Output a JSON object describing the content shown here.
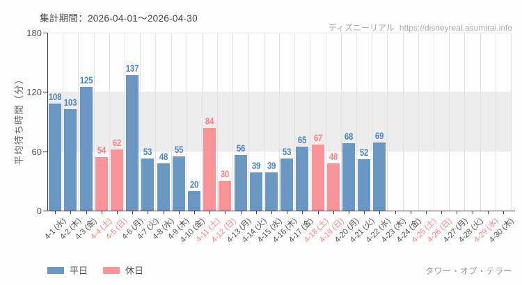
{
  "header": {
    "site_name": "ディズニーリアル",
    "site_url": "https://disneyreal.asumirai.info"
  },
  "footer": {
    "attraction": "タワー・オブ・テラー"
  },
  "colors": {
    "weekday_bar": "#6b97c3",
    "holiday_bar": "#fa949b",
    "weekday_value": "#4d86bf",
    "holiday_value": "#fa8088",
    "weekday_tick": "#555555",
    "holiday_tick": "#f8848c",
    "band": "#ececec",
    "grid": "#e2e2e2",
    "axis": "#3a3a3a"
  },
  "chart_data": {
    "type": "bar",
    "title": "集計期間：2026-04-01～2026-04-30",
    "xlabel": "",
    "ylabel": "平均待ち時間（分）",
    "ylim": [
      0,
      180
    ],
    "yticks": [
      0,
      60,
      120,
      180
    ],
    "shaded_band_y": [
      60,
      120
    ],
    "grid": "vertical",
    "legend_position": "bottom-left",
    "categories": [
      "4-1 (水)",
      "4-2 (木)",
      "4-3 (金)",
      "4-4 (土)",
      "4-5 (日)",
      "4-6 (月)",
      "4-7 (火)",
      "4-8 (水)",
      "4-9 (木)",
      "4-10 (金)",
      "4-11 (土)",
      "4-12 (日)",
      "4-13 (月)",
      "4-14 (火)",
      "4-15 (水)",
      "4-16 (木)",
      "4-17 (金)",
      "4-18 (土)",
      "4-19 (日)",
      "4-20 (月)",
      "4-21 (火)",
      "4-22 (水)",
      "4-23 (木)",
      "4-24 (金)",
      "4-25 (土)",
      "4-26 (日)",
      "4-27 (月)",
      "4-28 (火)",
      "4-29 (水)",
      "4-30 (木)"
    ],
    "values": [
      108,
      103,
      125,
      54,
      62,
      137,
      53,
      48,
      55,
      20,
      84,
      30,
      56,
      39,
      39,
      53,
      65,
      67,
      48,
      68,
      52,
      69,
      null,
      null,
      null,
      null,
      null,
      null,
      null,
      null
    ],
    "day_types": [
      "weekday",
      "weekday",
      "weekday",
      "holiday",
      "holiday",
      "weekday",
      "weekday",
      "weekday",
      "weekday",
      "weekday",
      "holiday",
      "holiday",
      "weekday",
      "weekday",
      "weekday",
      "weekday",
      "weekday",
      "holiday",
      "holiday",
      "weekday",
      "weekday",
      "weekday",
      "weekday",
      "weekday",
      "holiday",
      "holiday",
      "weekday",
      "weekday",
      "holiday",
      "weekday"
    ],
    "legend": [
      {
        "label": "平日",
        "type": "weekday"
      },
      {
        "label": "休日",
        "type": "holiday"
      }
    ]
  }
}
